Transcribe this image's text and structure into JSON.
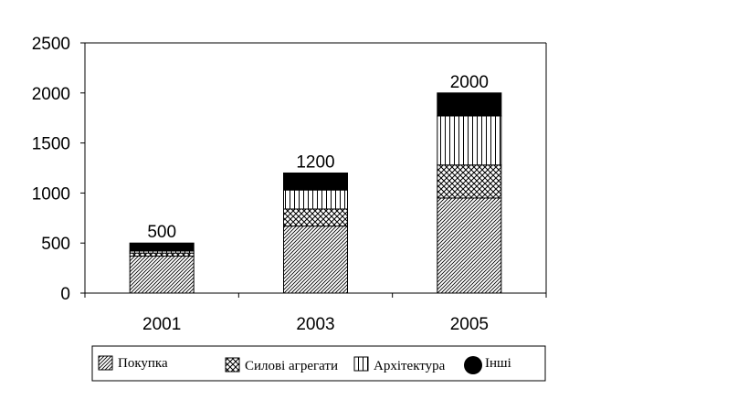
{
  "chart_data": {
    "type": "bar",
    "stacked": true,
    "categories": [
      "2001",
      "2003",
      "2005"
    ],
    "series": [
      {
        "name": "Покупка",
        "values": [
          370,
          670,
          950
        ],
        "pattern": "diagonal"
      },
      {
        "name": "Силові агрегати",
        "values": [
          30,
          170,
          330
        ],
        "pattern": "crosshatch"
      },
      {
        "name": "Архітектура",
        "values": [
          20,
          190,
          490
        ],
        "pattern": "vertical"
      },
      {
        "name": "Інші",
        "values": [
          80,
          170,
          230
        ],
        "pattern": "solid"
      }
    ],
    "totals": [
      "500",
      "1200",
      "2000"
    ],
    "y_ticks": [
      "0",
      "500",
      "1000",
      "1500",
      "2000",
      "2500"
    ],
    "ylim": [
      0,
      2500
    ],
    "grid": false,
    "legend_position": "bottom",
    "colors": {
      "ink": "#000000",
      "background": "#ffffff"
    }
  }
}
